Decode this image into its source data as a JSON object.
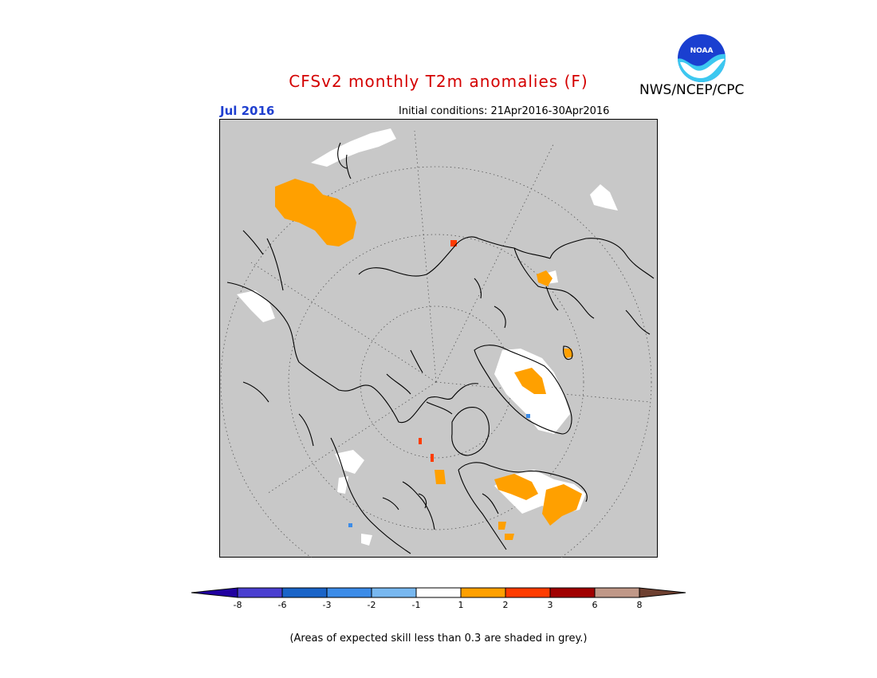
{
  "title": "CFSv2 monthly T2m anomalies (F)",
  "month": "Jul 2016",
  "initial_conditions": "Initial conditions: 21Apr2016-30Apr2016",
  "agency": "NWS/NCEP/CPC",
  "logo_text": "NOAA",
  "caption": "(Areas of expected skill less than 0.3 are shaded in grey.)",
  "colors": {
    "map_background": "#c8c8c8",
    "title": "#d40000",
    "month": "#1f3fcf",
    "coastline": "#000000"
  },
  "legend": {
    "colors": [
      "#2000a0",
      "#4a3fd0",
      "#1a64c8",
      "#3c8ce8",
      "#78b8f0",
      "#ffffff",
      "#ffa000",
      "#ff3c00",
      "#a00000",
      "#c09888",
      "#6e4030"
    ],
    "ticks": [
      "-8",
      "-6",
      "-3",
      "-2",
      "-1",
      "1",
      "2",
      "3",
      "6",
      "8"
    ]
  }
}
